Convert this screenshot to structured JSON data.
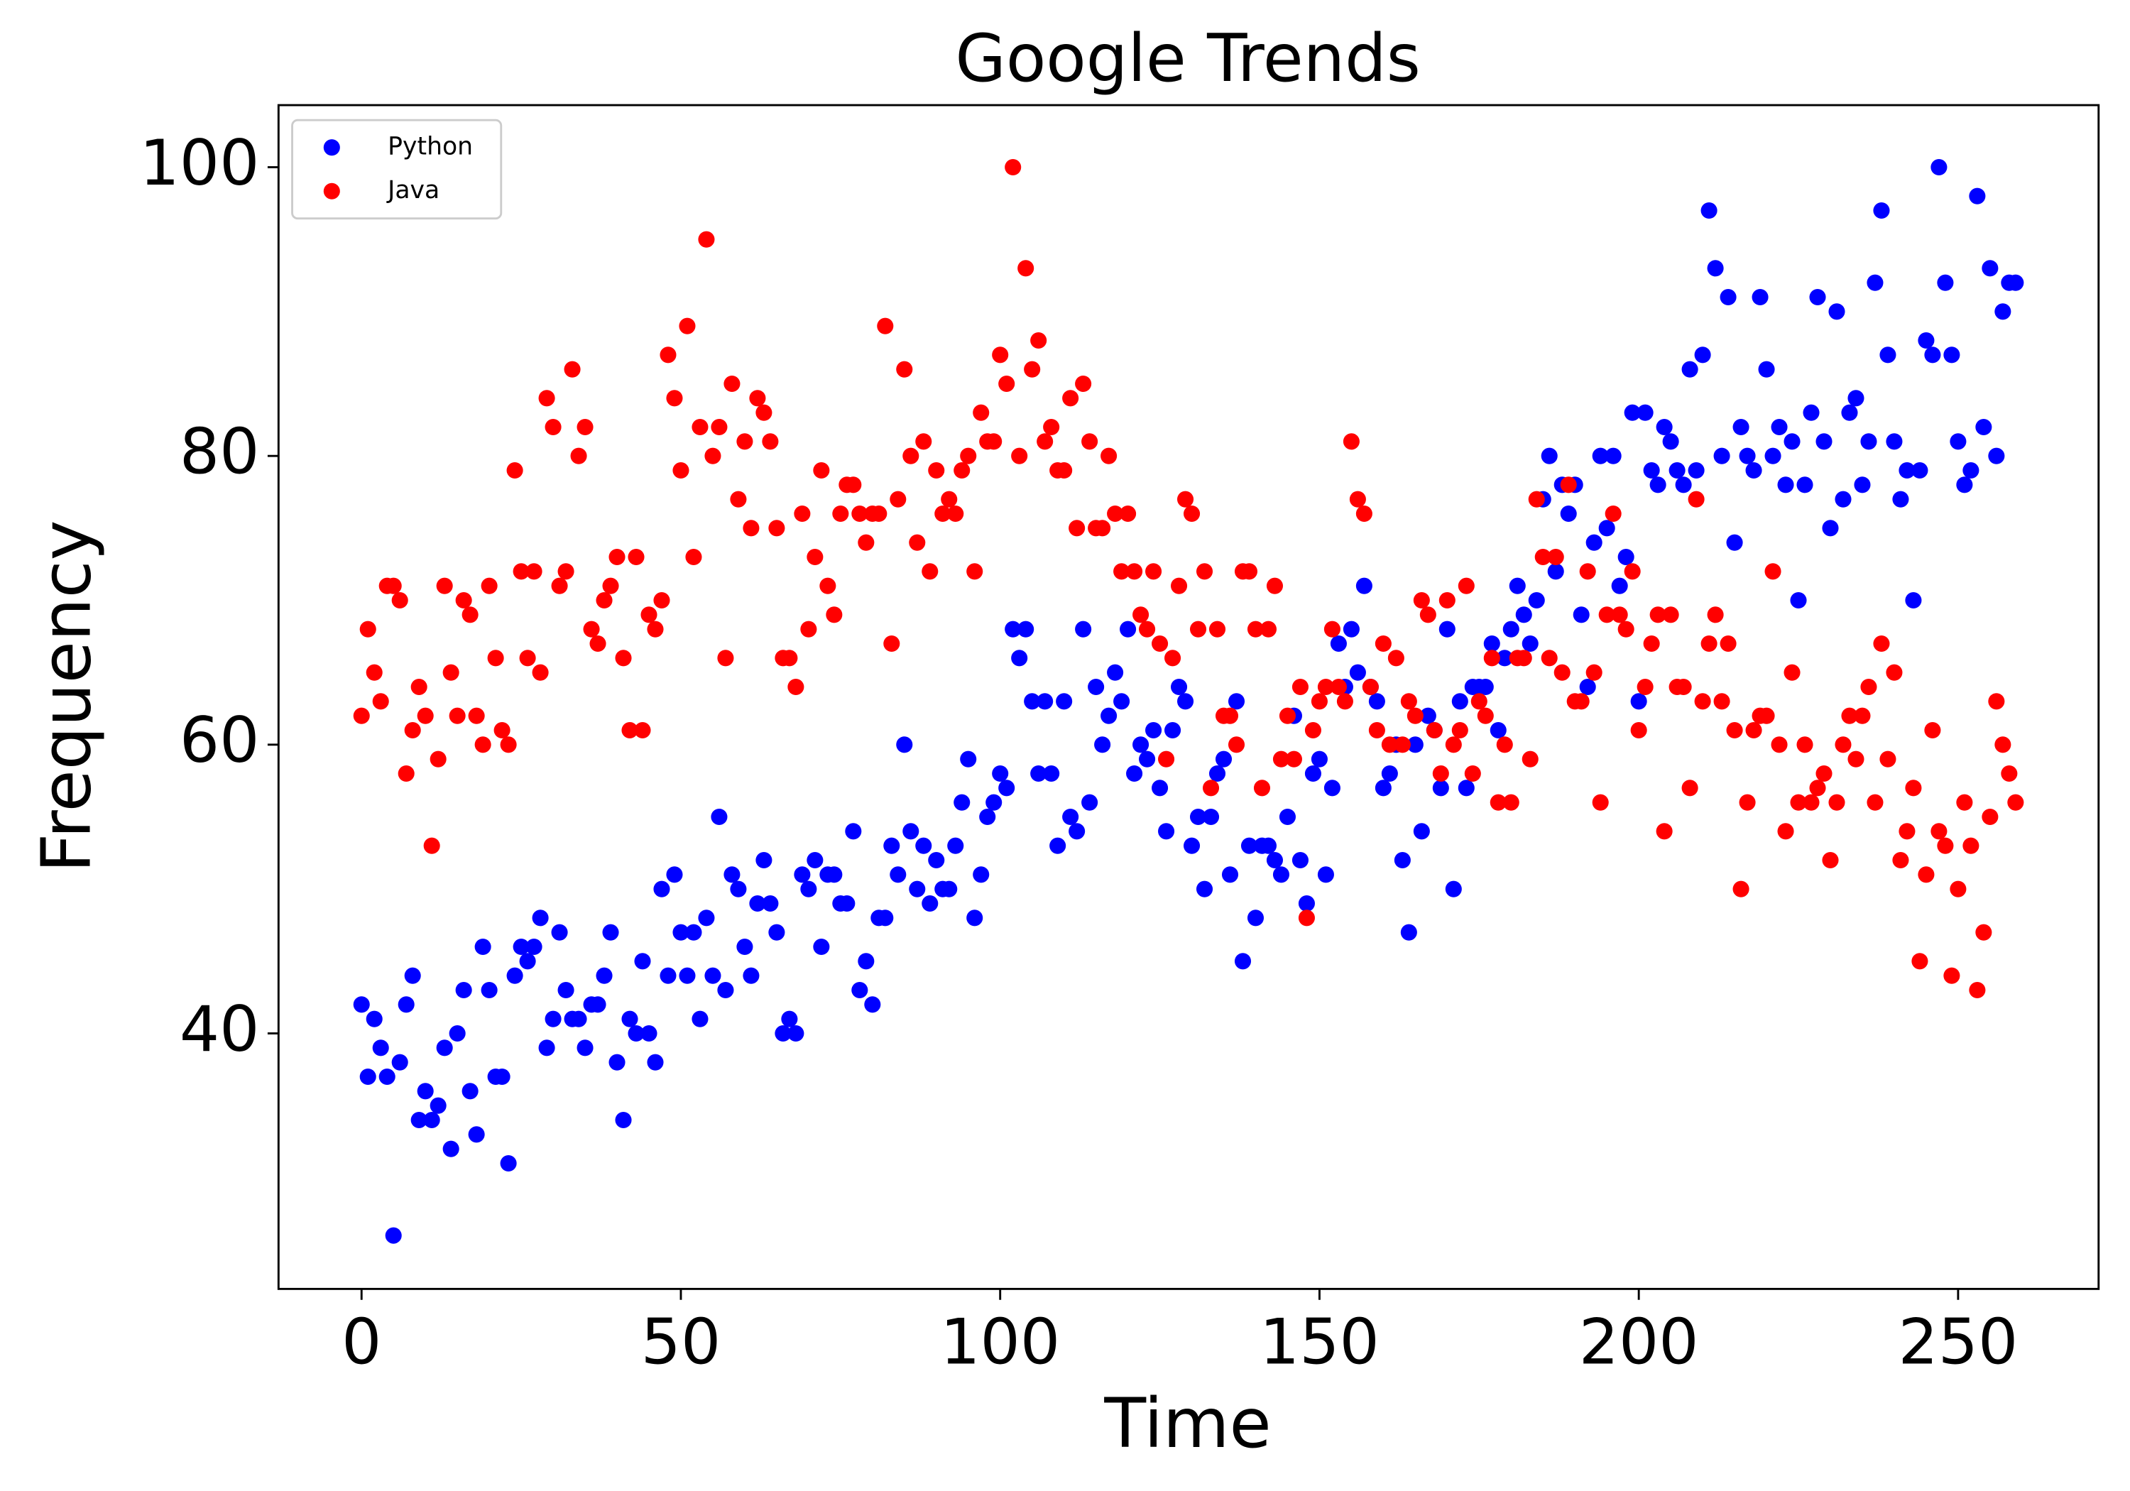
{
  "chart_data": {
    "type": "scatter",
    "title": "Google Trends",
    "x_label": "Time",
    "y_label": "Frequency",
    "x": [
      0,
      1,
      2,
      3,
      4,
      5,
      6,
      7,
      8,
      9,
      10,
      11,
      12,
      13,
      14,
      15,
      16,
      17,
      18,
      19,
      20,
      21,
      22,
      23,
      24,
      25,
      26,
      27,
      28,
      29,
      30,
      31,
      32,
      33,
      34,
      35,
      36,
      37,
      38,
      39,
      40,
      41,
      42,
      43,
      44,
      45,
      46,
      47,
      48,
      49,
      50,
      51,
      52,
      53,
      54,
      55,
      56,
      57,
      58,
      59,
      60,
      61,
      62,
      63,
      64,
      65,
      66,
      67,
      68,
      69,
      70,
      71,
      72,
      73,
      74,
      75,
      76,
      77,
      78,
      79,
      80,
      81,
      82,
      83,
      84,
      85,
      86,
      87,
      88,
      89,
      90,
      91,
      92,
      93,
      94,
      95,
      96,
      97,
      98,
      99,
      100,
      101,
      102,
      103,
      104,
      105,
      106,
      107,
      108,
      109,
      110,
      111,
      112,
      113,
      114,
      115,
      116,
      117,
      118,
      119,
      120,
      121,
      122,
      123,
      124,
      125,
      126,
      127,
      128,
      129,
      130,
      131,
      132,
      133,
      134,
      135,
      136,
      137,
      138,
      139,
      140,
      141,
      142,
      143,
      144,
      145,
      146,
      147,
      148,
      149,
      150,
      151,
      152,
      153,
      154,
      155,
      156,
      157,
      158,
      159,
      160,
      161,
      162,
      163,
      164,
      165,
      166,
      167,
      168,
      169,
      170,
      171,
      172,
      173,
      174,
      175,
      176,
      177,
      178,
      179,
      180,
      181,
      182,
      183,
      184,
      185,
      186,
      187,
      188,
      189,
      190,
      191,
      192,
      193,
      194,
      195,
      196,
      197,
      198,
      199,
      200,
      201,
      202,
      203,
      204,
      205,
      206,
      207,
      208,
      209,
      210,
      211,
      212,
      213,
      214,
      215,
      216,
      217,
      218,
      219,
      220,
      221,
      222,
      223,
      224,
      225,
      226,
      227,
      228,
      229,
      230,
      231,
      232,
      233,
      234,
      235,
      236,
      237,
      238,
      239,
      240,
      241,
      242,
      243,
      244,
      245,
      246,
      247,
      248,
      249,
      250,
      251,
      252,
      253,
      254,
      255,
      256,
      257,
      258,
      259
    ],
    "series": [
      {
        "name": "Python",
        "color": "blue",
        "values": [
          42,
          37,
          41,
          39,
          37,
          26,
          38,
          42,
          44,
          34,
          36,
          34,
          35,
          39,
          32,
          40,
          43,
          36,
          33,
          46,
          43,
          37,
          37,
          31,
          44,
          46,
          45,
          46,
          48,
          39,
          41,
          47,
          43,
          41,
          41,
          39,
          42,
          42,
          44,
          47,
          38,
          34,
          41,
          40,
          45,
          40,
          38,
          50,
          44,
          51,
          47,
          44,
          47,
          41,
          48,
          44,
          55,
          43,
          51,
          50,
          46,
          44,
          49,
          52,
          49,
          47,
          40,
          41,
          40,
          51,
          50,
          52,
          46,
          51,
          51,
          49,
          49,
          54,
          43,
          45,
          42,
          48,
          48,
          53,
          51,
          60,
          54,
          50,
          53,
          49,
          52,
          50,
          50,
          53,
          56,
          59,
          48,
          51,
          55,
          56,
          58,
          57,
          68,
          66,
          68,
          63,
          58,
          63,
          58,
          53,
          63,
          55,
          54,
          68,
          56,
          64,
          60,
          62,
          65,
          63,
          68,
          58,
          60,
          59,
          61,
          57,
          54,
          61,
          64,
          63,
          53,
          55,
          50,
          55,
          58,
          59,
          51,
          63,
          45,
          53,
          48,
          53,
          53,
          52,
          51,
          55,
          62,
          52,
          49,
          58,
          59,
          51,
          57,
          67,
          64,
          68,
          65,
          71,
          64,
          63,
          57,
          58,
          60,
          52,
          47,
          60,
          54,
          62,
          61,
          57,
          68,
          50,
          63,
          57,
          64,
          64,
          64,
          67,
          61,
          66,
          68,
          71,
          69,
          67,
          70,
          77,
          80,
          72,
          78,
          76,
          78,
          69,
          64,
          74,
          80,
          75,
          80,
          71,
          73,
          83,
          63,
          83,
          79,
          78,
          82,
          81,
          79,
          78,
          86,
          79,
          87,
          97,
          93,
          80,
          91,
          74,
          82,
          80,
          79,
          91,
          86,
          80,
          82,
          78,
          81,
          70,
          78,
          83,
          91,
          81,
          75,
          90,
          77,
          83,
          84,
          78,
          81,
          92,
          97,
          87,
          81,
          77,
          79,
          70,
          79,
          88,
          87,
          100,
          92,
          87,
          81,
          78,
          79,
          98,
          82,
          93,
          80,
          90,
          92,
          92
        ]
      },
      {
        "name": "Java",
        "color": "red",
        "values": [
          62,
          68,
          65,
          63,
          71,
          71,
          70,
          58,
          61,
          64,
          62,
          53,
          59,
          71,
          65,
          62,
          70,
          69,
          62,
          60,
          71,
          66,
          61,
          60,
          79,
          72,
          66,
          72,
          65,
          84,
          82,
          71,
          72,
          86,
          80,
          82,
          68,
          67,
          70,
          71,
          73,
          66,
          61,
          73,
          61,
          69,
          68,
          70,
          87,
          84,
          79,
          89,
          73,
          82,
          95,
          80,
          82,
          66,
          85,
          77,
          81,
          75,
          84,
          83,
          81,
          75,
          66,
          66,
          64,
          76,
          68,
          73,
          79,
          71,
          69,
          76,
          78,
          78,
          76,
          74,
          76,
          76,
          89,
          67,
          77,
          86,
          80,
          74,
          81,
          72,
          79,
          76,
          77,
          76,
          79,
          80,
          72,
          83,
          81,
          81,
          87,
          85,
          100,
          80,
          93,
          86,
          88,
          81,
          82,
          79,
          79,
          84,
          75,
          85,
          81,
          75,
          75,
          80,
          76,
          72,
          76,
          72,
          69,
          68,
          72,
          67,
          59,
          66,
          71,
          77,
          76,
          68,
          72,
          57,
          68,
          62,
          62,
          60,
          72,
          72,
          68,
          57,
          68,
          71,
          59,
          62,
          59,
          64,
          48,
          61,
          63,
          64,
          68,
          64,
          63,
          81,
          77,
          76,
          64,
          61,
          67,
          60,
          66,
          60,
          63,
          62,
          70,
          69,
          61,
          58,
          70,
          60,
          61,
          71,
          58,
          63,
          62,
          66,
          56,
          60,
          56,
          66,
          66,
          59,
          77,
          73,
          66,
          73,
          65,
          78,
          63,
          63,
          72,
          65,
          56,
          69,
          76,
          69,
          68,
          72,
          61,
          64,
          67,
          69,
          54,
          69,
          64,
          64,
          57,
          77,
          63,
          67,
          69,
          63,
          67,
          61,
          50,
          56,
          61,
          62,
          62,
          72,
          60,
          54,
          65,
          56,
          60,
          56,
          57,
          58,
          52,
          56,
          60,
          62,
          59,
          62,
          64,
          56,
          67,
          59,
          65,
          52,
          54,
          57,
          45,
          51,
          61,
          54,
          53,
          44,
          50,
          56,
          53,
          43,
          47,
          55,
          63,
          60,
          58,
          56
        ]
      }
    ],
    "xlim": [
      -13,
      272
    ],
    "ylim": [
      22.3,
      104.3
    ],
    "xticks": [
      0,
      50,
      100,
      150,
      200,
      250
    ],
    "yticks": [
      40,
      60,
      80,
      100
    ],
    "grid": false,
    "legend": "upper left"
  }
}
